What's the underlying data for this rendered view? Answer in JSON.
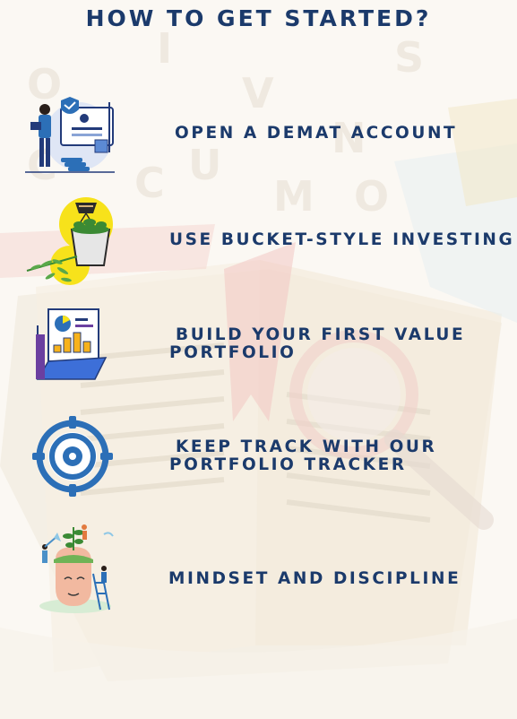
{
  "title": "HOW TO GET STARTED?",
  "steps": [
    {
      "lines": [
        "OPEN A DEMAT ACCOUNT"
      ],
      "icon": "demat-account-icon"
    },
    {
      "lines": [
        "USE BUCKET-STYLE INVESTING"
      ],
      "icon": "bucket-plant-icon"
    },
    {
      "lines": [
        "BUILD YOUR FIRST VALUE",
        "PORTFOLIO"
      ],
      "icon": "portfolio-chart-icon"
    },
    {
      "lines": [
        "KEEP TRACK WITH OUR",
        "PORTFOLIO TRACKER"
      ],
      "icon": "target-icon"
    },
    {
      "lines": [
        "MINDSET AND DISCIPLINE"
      ],
      "icon": "mindset-head-icon"
    }
  ],
  "colors": {
    "navy": "#1b3a6b",
    "accent_blue": "#2c6fb7",
    "background": "#fbf8f3",
    "yellow": "#f7e21b"
  }
}
